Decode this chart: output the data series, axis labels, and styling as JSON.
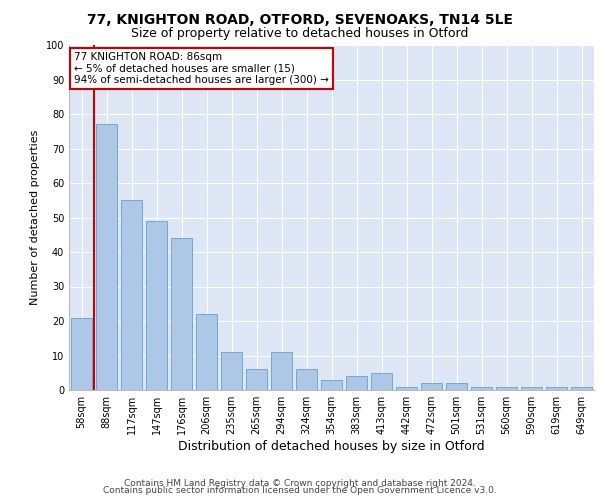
{
  "title_line1": "77, KNIGHTON ROAD, OTFORD, SEVENOAKS, TN14 5LE",
  "title_line2": "Size of property relative to detached houses in Otford",
  "xlabel": "Distribution of detached houses by size in Otford",
  "ylabel": "Number of detached properties",
  "bar_values": [
    21,
    77,
    55,
    49,
    44,
    22,
    11,
    6,
    11,
    6,
    3,
    4,
    5,
    1,
    2,
    2,
    1,
    1,
    1,
    1,
    1
  ],
  "x_labels": [
    "58sqm",
    "88sqm",
    "117sqm",
    "147sqm",
    "176sqm",
    "206sqm",
    "235sqm",
    "265sqm",
    "294sqm",
    "324sqm",
    "354sqm",
    "383sqm",
    "413sqm",
    "442sqm",
    "472sqm",
    "501sqm",
    "531sqm",
    "560sqm",
    "590sqm",
    "619sqm",
    "649sqm"
  ],
  "bar_color": "#adc8e6",
  "bar_edge_color": "#6a9fcc",
  "annotation_box_text": "77 KNIGHTON ROAD: 86sqm\n← 5% of detached houses are smaller (15)\n94% of semi-detached houses are larger (300) →",
  "annotation_box_color": "#ffffff",
  "annotation_box_edge_color": "#cc0000",
  "vline_color": "#cc0000",
  "vline_x_bar_index": 1,
  "ylim": [
    0,
    100
  ],
  "yticks": [
    0,
    10,
    20,
    30,
    40,
    50,
    60,
    70,
    80,
    90,
    100
  ],
  "background_color": "#dce6f5",
  "footer_line1": "Contains HM Land Registry data © Crown copyright and database right 2024.",
  "footer_line2": "Contains public sector information licensed under the Open Government Licence v3.0.",
  "title_fontsize": 10,
  "subtitle_fontsize": 9,
  "xlabel_fontsize": 9,
  "ylabel_fontsize": 8,
  "tick_fontsize": 7,
  "annotation_fontsize": 7.5,
  "footer_fontsize": 6.5
}
